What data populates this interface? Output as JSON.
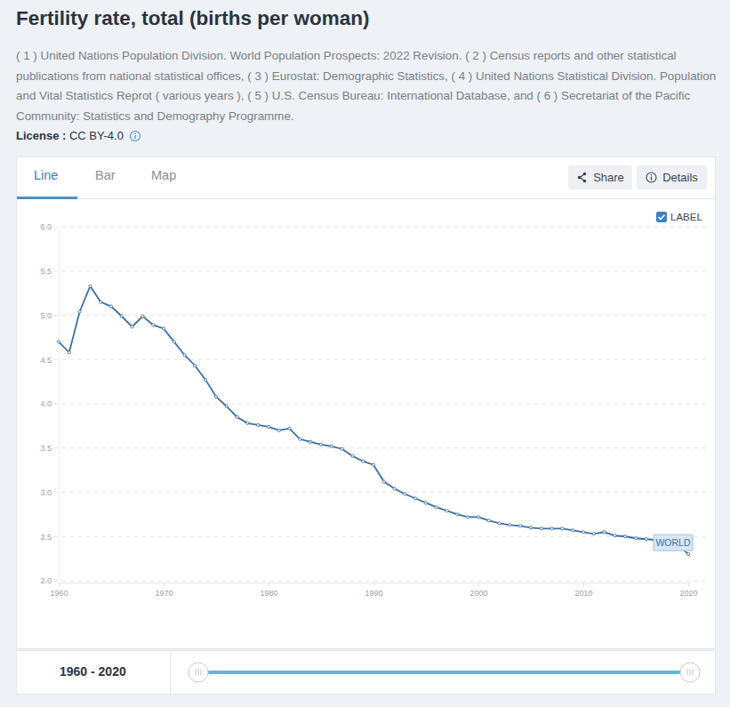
{
  "chart_data": {
    "type": "line",
    "title": "Fertility rate, total (births per woman)",
    "subtitle": "( 1 ) United Nations Population Division. World Population Prospects: 2022 Revision. ( 2 ) Census reports and other statistical publications from national statistical offices, ( 3 ) Eurostat: Demographic Statistics, ( 4 ) United Nations Statistical Division. Population and Vital Statistics Reprot ( various years ), ( 5 ) U.S. Census Bureau: International Database, and ( 6 ) Secretariat of the Pacific Community: Statistics and Demography Programme.",
    "x": [
      1960,
      1961,
      1962,
      1963,
      1964,
      1965,
      1966,
      1967,
      1968,
      1969,
      1970,
      1971,
      1972,
      1973,
      1974,
      1975,
      1976,
      1977,
      1978,
      1979,
      1980,
      1981,
      1982,
      1983,
      1984,
      1985,
      1986,
      1987,
      1988,
      1989,
      1990,
      1991,
      1992,
      1993,
      1994,
      1995,
      1996,
      1997,
      1998,
      1999,
      2000,
      2001,
      2002,
      2003,
      2004,
      2005,
      2006,
      2007,
      2008,
      2009,
      2010,
      2011,
      2012,
      2013,
      2014,
      2015,
      2016,
      2017,
      2018,
      2019,
      2020
    ],
    "series": [
      {
        "name": "WORLD",
        "color": "#3d6fa3",
        "marker": "circle",
        "line_style": "solid",
        "values": [
          4.7,
          4.58,
          5.04,
          5.33,
          5.15,
          5.1,
          4.99,
          4.87,
          4.99,
          4.89,
          4.85,
          4.7,
          4.55,
          4.43,
          4.27,
          4.08,
          3.97,
          3.85,
          3.78,
          3.76,
          3.74,
          3.7,
          3.72,
          3.6,
          3.57,
          3.54,
          3.52,
          3.49,
          3.41,
          3.35,
          3.31,
          3.12,
          3.04,
          2.98,
          2.93,
          2.88,
          2.83,
          2.79,
          2.75,
          2.72,
          2.72,
          2.68,
          2.65,
          2.63,
          2.62,
          2.6,
          2.59,
          2.59,
          2.59,
          2.57,
          2.55,
          2.53,
          2.55,
          2.51,
          2.5,
          2.48,
          2.47,
          2.46,
          2.43,
          2.41,
          2.3
        ]
      }
    ],
    "xlim": [
      1960,
      2020
    ],
    "xticks": [
      1960,
      1970,
      1980,
      1990,
      2000,
      2010,
      2020
    ],
    "ylim": [
      2,
      6
    ],
    "yticks": [
      {
        "value": 2,
        "label": "2.0"
      },
      {
        "value": 2.5,
        "label": "2.5"
      },
      {
        "value": 3,
        "label": "3.0"
      },
      {
        "value": 3.5,
        "label": "3.5"
      },
      {
        "value": 4,
        "label": "4.0"
      },
      {
        "value": 4.5,
        "label": "4.5"
      },
      {
        "value": 5,
        "label": "5.0"
      },
      {
        "value": 5.5,
        "label": "5.5"
      },
      {
        "value": 6,
        "label": "6.0"
      }
    ],
    "grid": true
  },
  "page": {
    "license_label": "License",
    "license": "CC BY-4.0",
    "tabs": [
      "Line",
      "Bar",
      "Map"
    ],
    "buttons": [
      "Share",
      "Details"
    ],
    "checkbox_label": "LABEL",
    "range_label": "1960 - 2020"
  }
}
